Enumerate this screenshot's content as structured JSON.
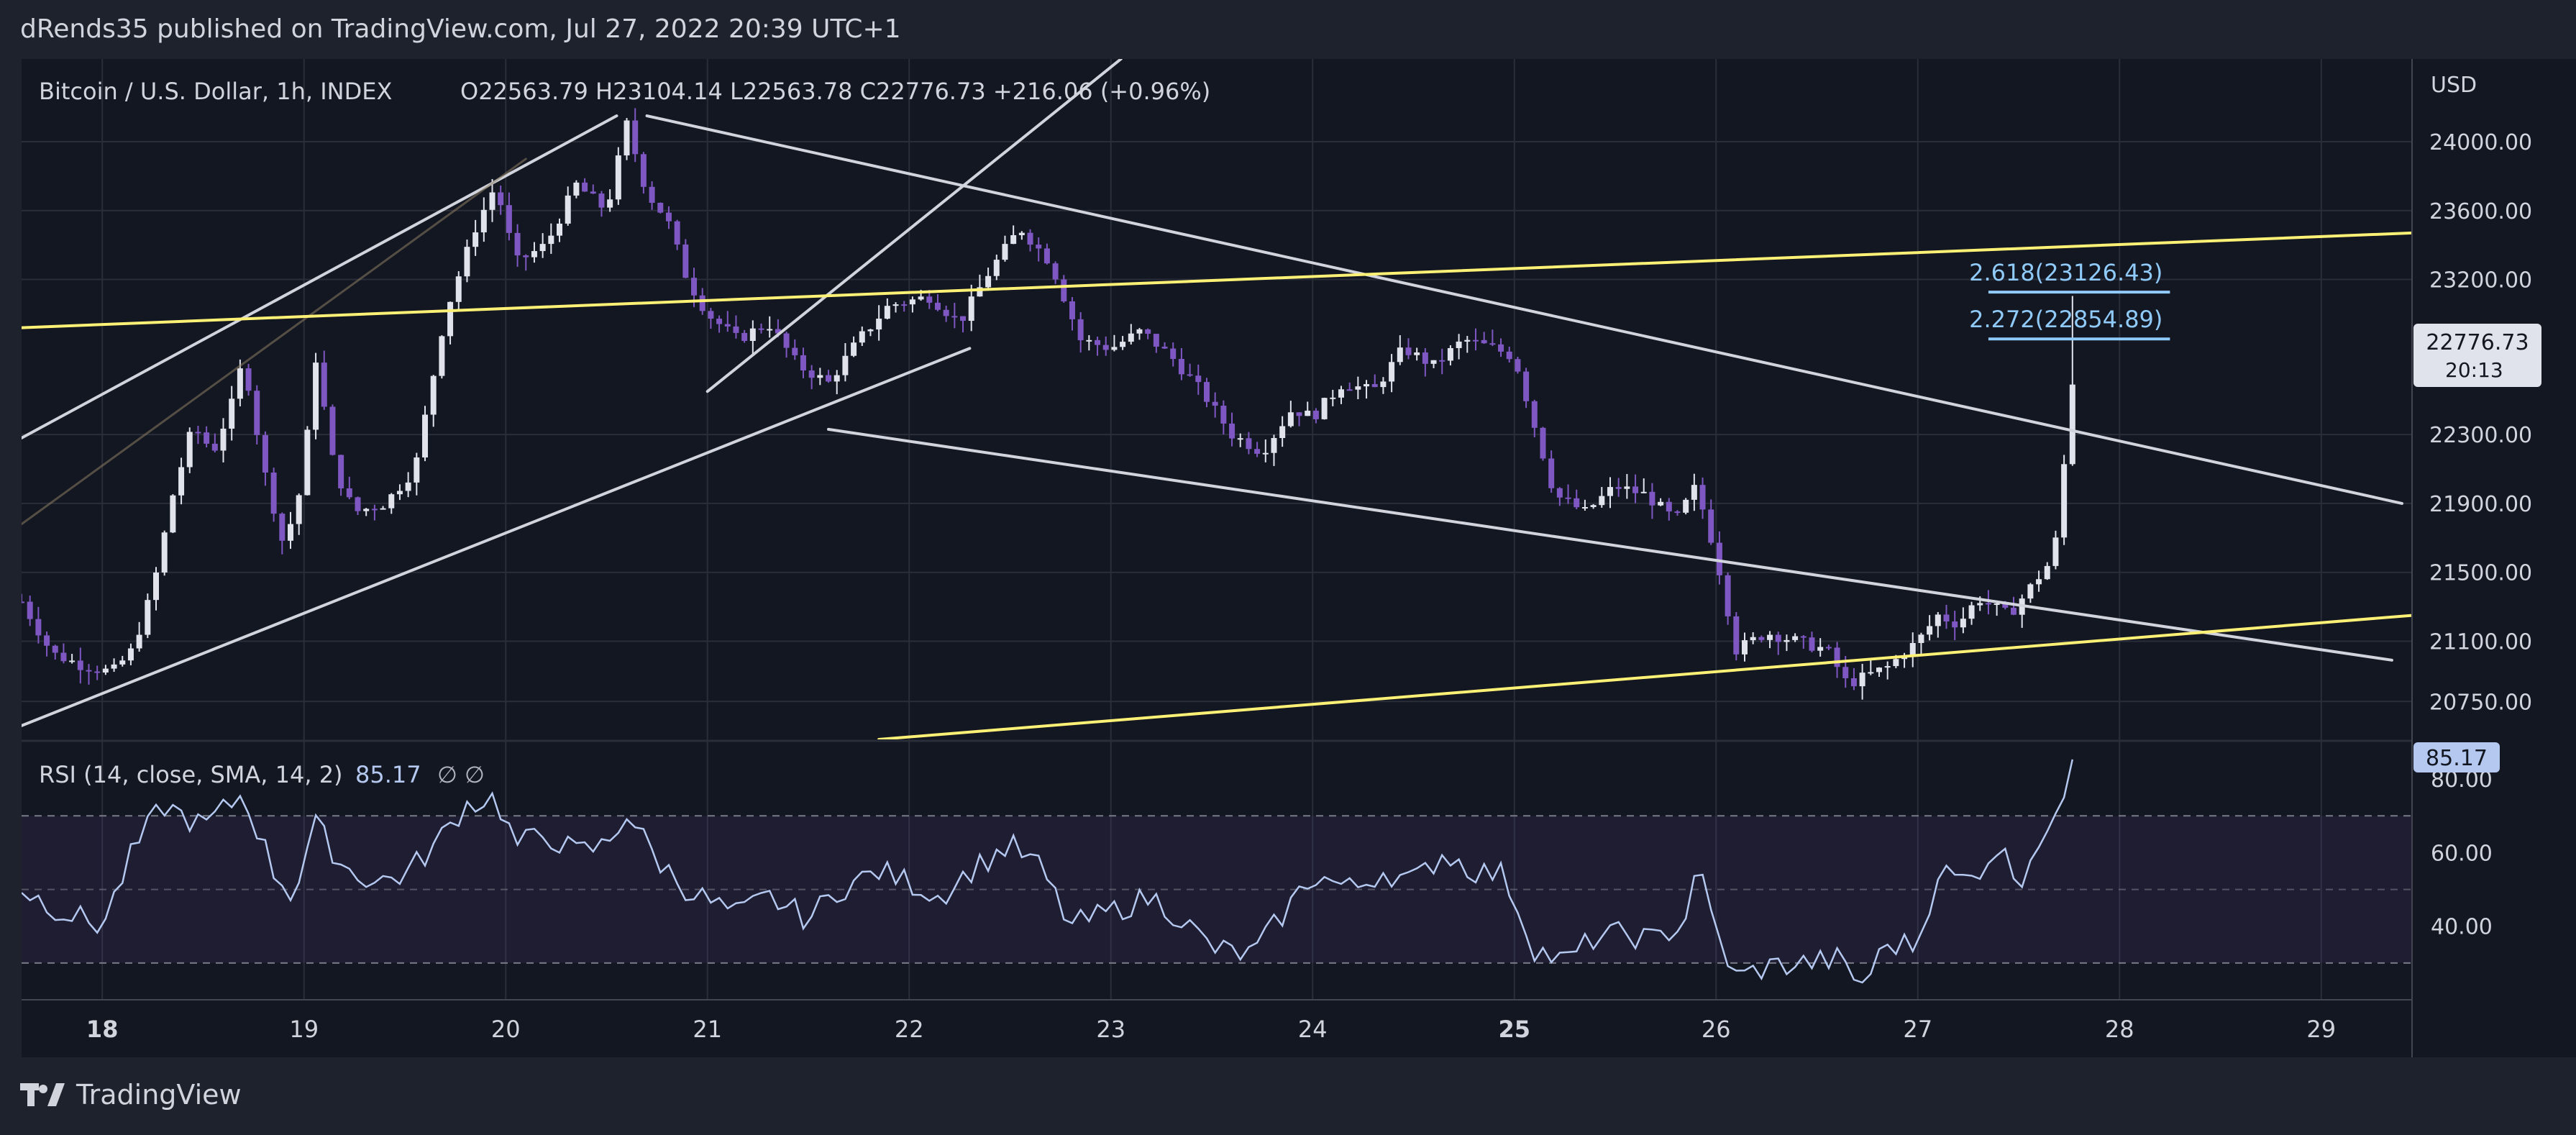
{
  "header": {
    "published": "dRends35 published on TradingView.com, Jul 27, 2022 20:39 UTC+1"
  },
  "footer": {
    "brand": "TradingView"
  },
  "colors": {
    "background": "#131722",
    "frame": "#1e222d",
    "grid": "#2a2e39",
    "bull": "#e0e3eb",
    "bear": "#7e57c2",
    "trend": "#d1d4dc",
    "yellow": "#fff176",
    "fib": "#90caf9",
    "rsi": "#b4c8f0"
  },
  "chart_data": [
    {
      "type": "candlestick",
      "symbol": "Bitcoin / U.S. Dollar, 1h, INDEX",
      "ohlc_label": "O22563.79 H23104.14 L22563.78 C22776.73 +216.06 (+0.96%)",
      "currency": "USD",
      "y_ticks": [
        24000,
        23600,
        23200,
        22300,
        21900,
        21500,
        21100,
        20750
      ],
      "y_tick_labels": [
        "24000.00",
        "23600.00",
        "23200.00",
        "22300.00",
        "21900.00",
        "21500.00",
        "21100.00",
        "20750.00"
      ],
      "x_ticks": [
        18,
        19,
        20,
        21,
        22,
        23,
        24,
        25,
        26,
        27,
        28,
        29
      ],
      "x_tick_labels": [
        "18",
        "19",
        "20",
        "21",
        "22",
        "23",
        "24",
        "25",
        "26",
        "27",
        "28",
        "29"
      ],
      "x_bold_labels": [
        "18",
        "25"
      ],
      "ylim": [
        20530,
        24480
      ],
      "xlim": [
        17.6,
        29.45
      ],
      "last_price": "22776.73",
      "countdown": "20:13",
      "fib_levels": [
        {
          "label": "2.618(23126.43)",
          "value": 23126.43,
          "x_start": 27.35,
          "x_end": 28.25
        },
        {
          "label": "2.272(22854.89)",
          "value": 22854.89,
          "x_start": 27.35,
          "x_end": 28.25
        }
      ],
      "anchor_points": [
        {
          "x": 17.6,
          "y": 21330
        },
        {
          "x": 17.75,
          "y": 21030
        },
        {
          "x": 17.9,
          "y": 20960
        },
        {
          "x": 18.05,
          "y": 20920
        },
        {
          "x": 18.15,
          "y": 21050
        },
        {
          "x": 18.25,
          "y": 21400
        },
        {
          "x": 18.35,
          "y": 21950
        },
        {
          "x": 18.45,
          "y": 22350
        },
        {
          "x": 18.55,
          "y": 22200
        },
        {
          "x": 18.65,
          "y": 22500
        },
        {
          "x": 18.7,
          "y": 22750
        },
        {
          "x": 18.8,
          "y": 22100
        },
        {
          "x": 18.9,
          "y": 21650
        },
        {
          "x": 19.0,
          "y": 22050
        },
        {
          "x": 19.05,
          "y": 22800
        },
        {
          "x": 19.15,
          "y": 22100
        },
        {
          "x": 19.25,
          "y": 21850
        },
        {
          "x": 19.4,
          "y": 21900
        },
        {
          "x": 19.55,
          "y": 22100
        },
        {
          "x": 19.7,
          "y": 23000
        },
        {
          "x": 19.85,
          "y": 23500
        },
        {
          "x": 19.95,
          "y": 23750
        },
        {
          "x": 20.05,
          "y": 23300
        },
        {
          "x": 20.2,
          "y": 23400
        },
        {
          "x": 20.35,
          "y": 23750
        },
        {
          "x": 20.5,
          "y": 23600
        },
        {
          "x": 20.6,
          "y": 24100
        },
        {
          "x": 20.7,
          "y": 23700
        },
        {
          "x": 20.8,
          "y": 23550
        },
        {
          "x": 20.9,
          "y": 23200
        },
        {
          "x": 21.0,
          "y": 23000
        },
        {
          "x": 21.15,
          "y": 22850
        },
        {
          "x": 21.3,
          "y": 22950
        },
        {
          "x": 21.45,
          "y": 22700
        },
        {
          "x": 21.6,
          "y": 22600
        },
        {
          "x": 21.75,
          "y": 22850
        },
        {
          "x": 21.9,
          "y": 23050
        },
        {
          "x": 22.1,
          "y": 23100
        },
        {
          "x": 22.25,
          "y": 22950
        },
        {
          "x": 22.4,
          "y": 23250
        },
        {
          "x": 22.55,
          "y": 23500
        },
        {
          "x": 22.7,
          "y": 23300
        },
        {
          "x": 22.85,
          "y": 22850
        },
        {
          "x": 23.0,
          "y": 22800
        },
        {
          "x": 23.15,
          "y": 22900
        },
        {
          "x": 23.3,
          "y": 22750
        },
        {
          "x": 23.45,
          "y": 22550
        },
        {
          "x": 23.6,
          "y": 22300
        },
        {
          "x": 23.75,
          "y": 22200
        },
        {
          "x": 23.9,
          "y": 22450
        },
        {
          "x": 24.0,
          "y": 22400
        },
        {
          "x": 24.15,
          "y": 22600
        },
        {
          "x": 24.3,
          "y": 22550
        },
        {
          "x": 24.45,
          "y": 22800
        },
        {
          "x": 24.6,
          "y": 22700
        },
        {
          "x": 24.75,
          "y": 22850
        },
        {
          "x": 24.9,
          "y": 22800
        },
        {
          "x": 25.0,
          "y": 22750
        },
        {
          "x": 25.1,
          "y": 22350
        },
        {
          "x": 25.2,
          "y": 21950
        },
        {
          "x": 25.35,
          "y": 21850
        },
        {
          "x": 25.5,
          "y": 22000
        },
        {
          "x": 25.65,
          "y": 21950
        },
        {
          "x": 25.8,
          "y": 21800
        },
        {
          "x": 25.9,
          "y": 22000
        },
        {
          "x": 26.0,
          "y": 21600
        },
        {
          "x": 26.1,
          "y": 21050
        },
        {
          "x": 26.25,
          "y": 21150
        },
        {
          "x": 26.4,
          "y": 21100
        },
        {
          "x": 26.55,
          "y": 21050
        },
        {
          "x": 26.65,
          "y": 20850
        },
        {
          "x": 26.75,
          "y": 20900
        },
        {
          "x": 26.85,
          "y": 20950
        },
        {
          "x": 27.0,
          "y": 21100
        },
        {
          "x": 27.1,
          "y": 21250
        },
        {
          "x": 27.2,
          "y": 21200
        },
        {
          "x": 27.3,
          "y": 21350
        },
        {
          "x": 27.45,
          "y": 21250
        },
        {
          "x": 27.55,
          "y": 21400
        },
        {
          "x": 27.65,
          "y": 21550
        },
        {
          "x": 27.7,
          "y": 21750
        },
        {
          "x": 27.75,
          "y": 22500
        },
        {
          "x": 27.8,
          "y": 22770
        }
      ],
      "trendlines": [
        {
          "name": "upper-channel-line",
          "color": "trend",
          "points": [
            [
              17.6,
              22280
            ],
            [
              20.55,
              24150
            ]
          ]
        },
        {
          "name": "lower-channel-line",
          "color": "trend",
          "points": [
            [
              17.6,
              20610
            ],
            [
              22.3,
              22800
            ]
          ]
        },
        {
          "name": "steep-rising-line",
          "color": "trend",
          "points": [
            [
              21.0,
              22550
            ],
            [
              23.05,
              24480
            ]
          ]
        },
        {
          "name": "inner-channel-line",
          "color": "faint",
          "points": [
            [
              17.6,
              21780
            ],
            [
              20.1,
              23900
            ]
          ]
        },
        {
          "name": "descending-upper-line",
          "color": "trend",
          "points": [
            [
              20.7,
              24150
            ],
            [
              29.4,
              21900
            ]
          ]
        },
        {
          "name": "descending-lower-line",
          "color": "trend",
          "points": [
            [
              21.6,
              22330
            ],
            [
              29.35,
              20990
            ]
          ]
        },
        {
          "name": "yellow-upper-line",
          "color": "yellow",
          "points": [
            [
              17.6,
              22920
            ],
            [
              29.45,
              23470
            ]
          ]
        },
        {
          "name": "yellow-lower-line",
          "color": "yellow",
          "points": [
            [
              21.85,
              20530
            ],
            [
              29.45,
              21250
            ]
          ]
        }
      ]
    },
    {
      "type": "line",
      "title": "RSI (14, close, SMA, 14, 2)",
      "value_label": "85.17",
      "indicator_symbols": "∅ ∅",
      "current_value": 85.17,
      "y_ticks": [
        80,
        60,
        40
      ],
      "y_tick_labels": [
        "80.00",
        "60.00",
        "40.00"
      ],
      "band": [
        30,
        70
      ],
      "middle": 50,
      "ylim": [
        20,
        90
      ],
      "anchor_points": [
        {
          "x": 17.6,
          "y": 50
        },
        {
          "x": 17.8,
          "y": 44
        },
        {
          "x": 18.0,
          "y": 40
        },
        {
          "x": 18.15,
          "y": 60
        },
        {
          "x": 18.3,
          "y": 73
        },
        {
          "x": 18.5,
          "y": 67
        },
        {
          "x": 18.7,
          "y": 76
        },
        {
          "x": 18.85,
          "y": 55
        },
        {
          "x": 18.95,
          "y": 48
        },
        {
          "x": 19.05,
          "y": 68
        },
        {
          "x": 19.2,
          "y": 56
        },
        {
          "x": 19.35,
          "y": 52
        },
        {
          "x": 19.5,
          "y": 54
        },
        {
          "x": 19.65,
          "y": 62
        },
        {
          "x": 19.8,
          "y": 73
        },
        {
          "x": 19.95,
          "y": 75
        },
        {
          "x": 20.05,
          "y": 62
        },
        {
          "x": 20.2,
          "y": 65
        },
        {
          "x": 20.35,
          "y": 60
        },
        {
          "x": 20.5,
          "y": 62
        },
        {
          "x": 20.6,
          "y": 71
        },
        {
          "x": 20.75,
          "y": 58
        },
        {
          "x": 20.9,
          "y": 50
        },
        {
          "x": 21.0,
          "y": 47
        },
        {
          "x": 21.15,
          "y": 43
        },
        {
          "x": 21.3,
          "y": 48
        },
        {
          "x": 21.5,
          "y": 42
        },
        {
          "x": 21.65,
          "y": 50
        },
        {
          "x": 21.85,
          "y": 55
        },
        {
          "x": 22.0,
          "y": 52
        },
        {
          "x": 22.15,
          "y": 48
        },
        {
          "x": 22.3,
          "y": 55
        },
        {
          "x": 22.5,
          "y": 62
        },
        {
          "x": 22.65,
          "y": 56
        },
        {
          "x": 22.8,
          "y": 40
        },
        {
          "x": 23.0,
          "y": 44
        },
        {
          "x": 23.2,
          "y": 48
        },
        {
          "x": 23.35,
          "y": 42
        },
        {
          "x": 23.5,
          "y": 34
        },
        {
          "x": 23.7,
          "y": 32
        },
        {
          "x": 23.85,
          "y": 43
        },
        {
          "x": 24.0,
          "y": 54
        },
        {
          "x": 24.2,
          "y": 50
        },
        {
          "x": 24.35,
          "y": 55
        },
        {
          "x": 24.5,
          "y": 52
        },
        {
          "x": 24.65,
          "y": 60
        },
        {
          "x": 24.8,
          "y": 55
        },
        {
          "x": 24.95,
          "y": 54
        },
        {
          "x": 25.1,
          "y": 34
        },
        {
          "x": 25.25,
          "y": 30
        },
        {
          "x": 25.4,
          "y": 37
        },
        {
          "x": 25.55,
          "y": 38
        },
        {
          "x": 25.7,
          "y": 36
        },
        {
          "x": 25.85,
          "y": 42
        },
        {
          "x": 25.9,
          "y": 58
        },
        {
          "x": 26.0,
          "y": 38
        },
        {
          "x": 26.1,
          "y": 26
        },
        {
          "x": 26.25,
          "y": 29
        },
        {
          "x": 26.45,
          "y": 30
        },
        {
          "x": 26.6,
          "y": 31
        },
        {
          "x": 26.72,
          "y": 24
        },
        {
          "x": 26.85,
          "y": 35
        },
        {
          "x": 27.0,
          "y": 35
        },
        {
          "x": 27.1,
          "y": 55
        },
        {
          "x": 27.25,
          "y": 52
        },
        {
          "x": 27.4,
          "y": 62
        },
        {
          "x": 27.5,
          "y": 52
        },
        {
          "x": 27.6,
          "y": 64
        },
        {
          "x": 27.7,
          "y": 68
        },
        {
          "x": 27.75,
          "y": 85
        },
        {
          "x": 27.8,
          "y": 86
        }
      ]
    }
  ]
}
